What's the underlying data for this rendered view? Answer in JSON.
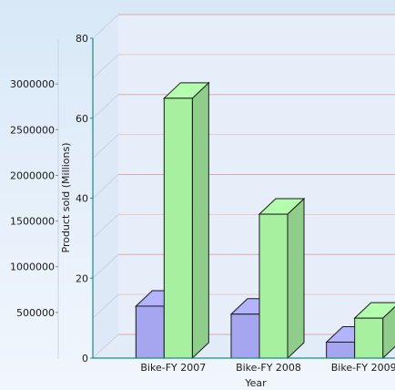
{
  "chart_data": {
    "type": "bar",
    "title": "",
    "xlabel": "Year",
    "ylabel": "Product sold (Millions)",
    "categories": [
      "Bike-FY 2007",
      "Bike-FY 2008",
      "Bike-FY 2009"
    ],
    "series": [
      {
        "color": "#a6a6f0",
        "values": [
          13,
          11,
          4
        ]
      },
      {
        "color": "#a6f0a0",
        "values": [
          65,
          36,
          10
        ]
      }
    ],
    "ylim": [
      0,
      80
    ],
    "yticks": [
      0,
      20,
      40,
      60,
      80
    ],
    "secondary_ylim": [
      0,
      3500000
    ],
    "secondary_yticks": [
      500000,
      1000000,
      1500000,
      2000000,
      2500000,
      3000000
    ],
    "grid": true,
    "style": "3d"
  }
}
